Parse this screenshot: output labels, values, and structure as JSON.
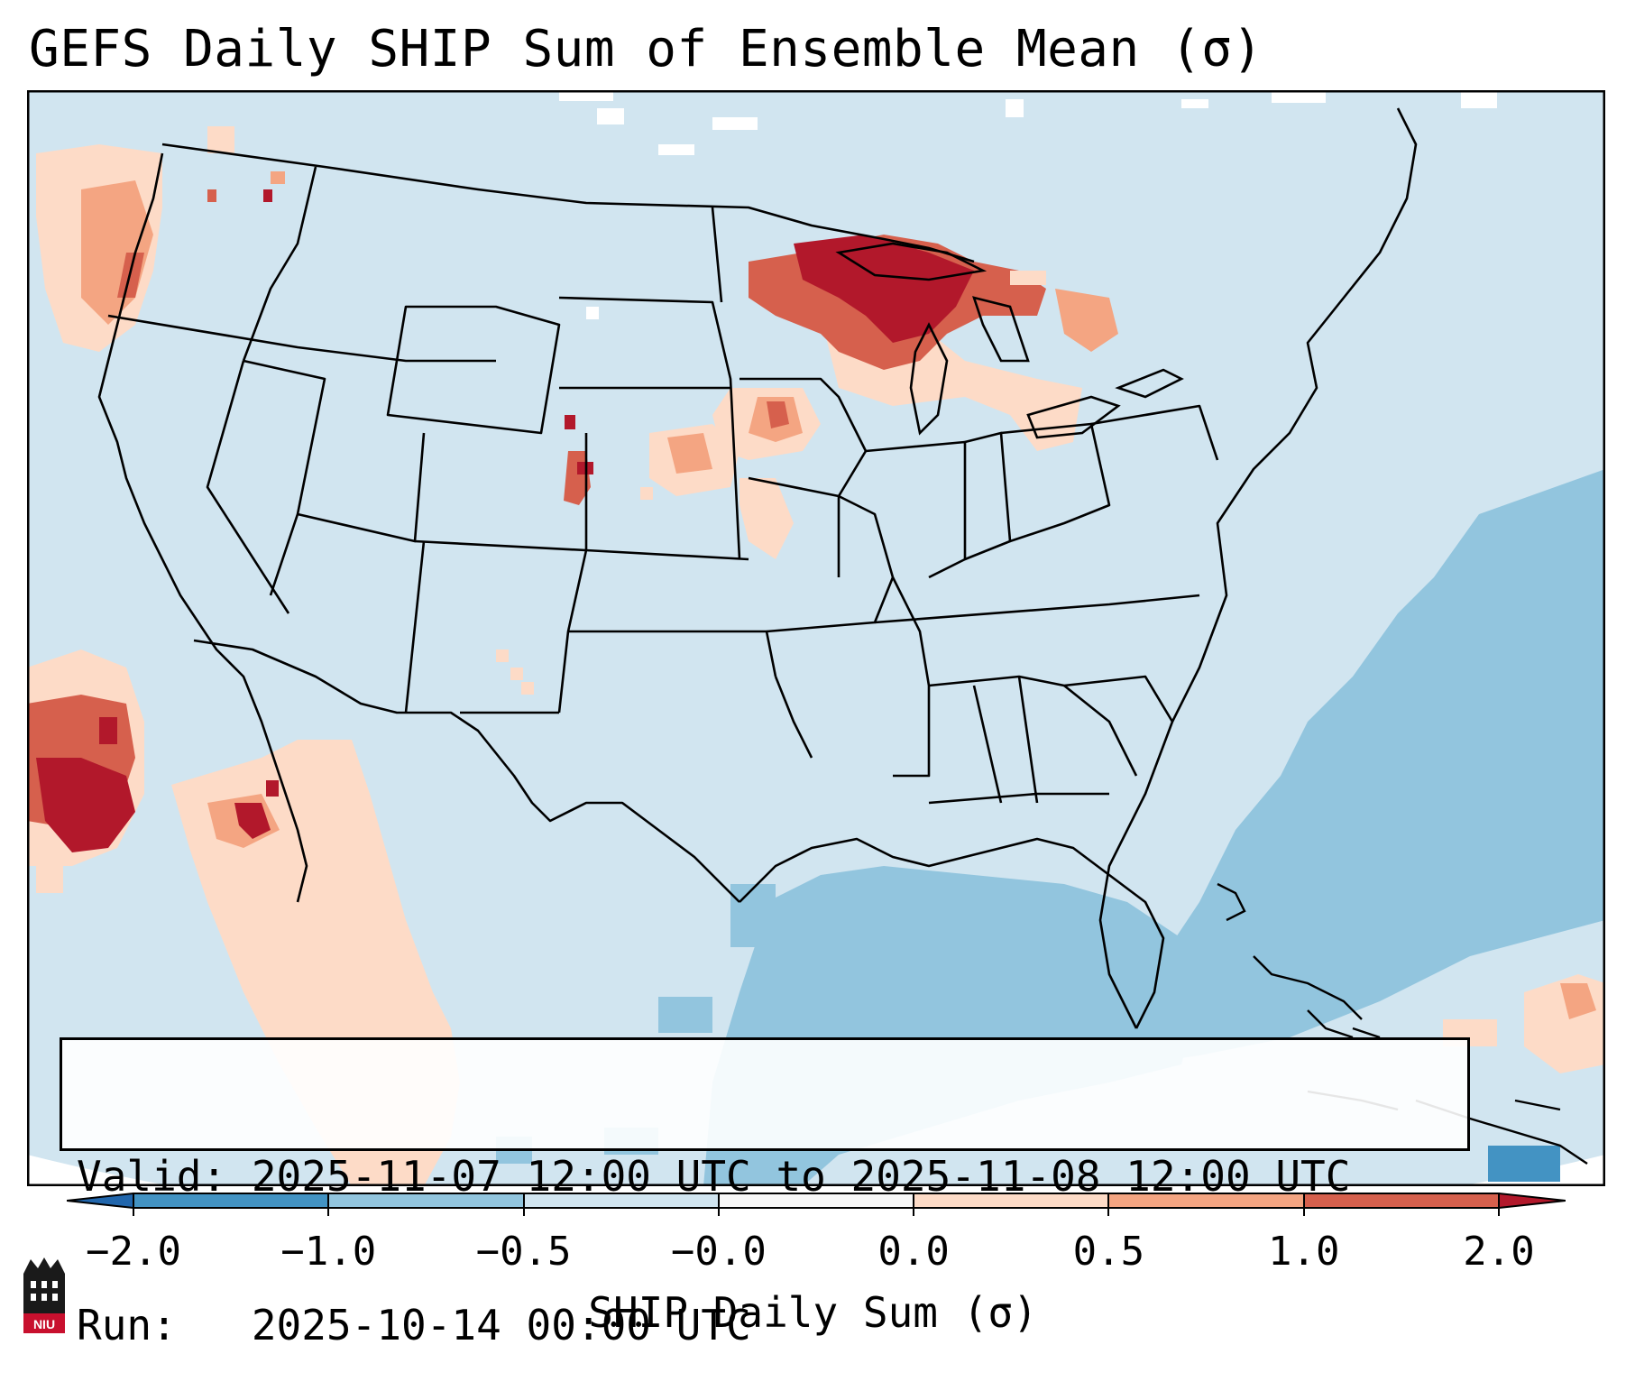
{
  "title": "GEFS Daily SHIP Sum of Ensemble Mean (σ)",
  "map": {
    "region": "Contiguous United States",
    "variable": "SHIP daily sum",
    "colors": {
      "land_background": "#d1e5f0",
      "ocean_band": "#92c5de",
      "strong_negative": "#4393c3",
      "no_data": "#ffffff",
      "light_positive": "#fddbc7",
      "moderate_positive": "#f4a582",
      "high_positive": "#d6604d",
      "very_high_positive": "#b2182b",
      "boundaries": "#000000"
    },
    "highlights": [
      {
        "area": "Upper Michigan / Northern Wisconsin",
        "category": "very_high_positive"
      },
      {
        "area": "Eastern Nebraska / Western Iowa",
        "category": "moderate_positive"
      },
      {
        "area": "Northeast Colorado",
        "category": "high_positive"
      },
      {
        "area": "Pacific Northwest coast",
        "category": "moderate_positive"
      },
      {
        "area": "Eastern Pacific off Baja",
        "category": "very_high_positive"
      },
      {
        "area": "Gulf of Mexico / Western Atlantic",
        "category": "negative"
      }
    ]
  },
  "info": {
    "valid_line": "Valid: 2025-11-07 12:00 UTC to 2025-11-08 12:00 UTC",
    "run_line": "Run:   2025-10-14 00:00 UTC"
  },
  "colorbar": {
    "label": "SHIP Daily Sum (σ)",
    "ticks": [
      "−2.0",
      "−1.0",
      "−0.5",
      "−0.0",
      "0.0",
      "0.5",
      "1.0",
      "2.0"
    ],
    "segment_colors": [
      "#2166ac",
      "#4393c3",
      "#92c5de",
      "#d1e5f0",
      "#f7f7f7",
      "#fddbc7",
      "#f4a582",
      "#d6604d",
      "#b2182b"
    ]
  },
  "logo": {
    "name": "niu-logo",
    "text": "NIU"
  }
}
